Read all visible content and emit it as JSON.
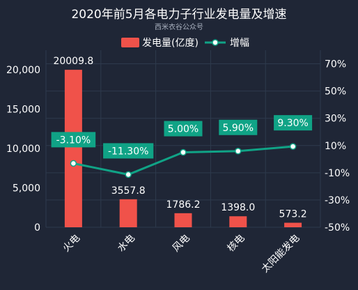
{
  "chart_data": {
    "type": "bar",
    "title": "2020年前5月各电力子行业发电量及增速",
    "subtitle": "西米衣谷公众号",
    "categories": [
      "火电",
      "水电",
      "风电",
      "核电",
      "太阳能发电"
    ],
    "series": [
      {
        "name": "发电量(亿度)",
        "type": "bar",
        "axis": "left",
        "values": [
          20009.8,
          3557.8,
          1786.2,
          1398.0,
          573.2
        ],
        "labels": [
          "20009.8",
          "3557.8",
          "1786.2",
          "1398.0",
          "573.2"
        ],
        "color": "#f0524a"
      },
      {
        "name": "增幅",
        "type": "line",
        "axis": "right",
        "values": [
          -3.1,
          -11.3,
          5.0,
          5.9,
          9.3
        ],
        "labels": [
          "-3.10%",
          "-11.30%",
          "5.00%",
          "5.90%",
          "9.30%"
        ],
        "color": "#10a386"
      }
    ],
    "y_left": {
      "min": 0,
      "max": 22500,
      "ticks": [
        "0",
        "5,000",
        "10,000",
        "15,000",
        "20,000"
      ]
    },
    "y_right": {
      "min": -50,
      "max": 80,
      "ticks": [
        "-50%",
        "-30%",
        "-10%",
        "10%",
        "30%",
        "50%",
        "70%"
      ]
    },
    "legend_position": "top",
    "grid": true,
    "colors": {
      "background": "#1f2636",
      "grid": "#2e3a4d",
      "bar": "#f0524a",
      "line": "#10a386",
      "tag": "#10a386"
    }
  }
}
